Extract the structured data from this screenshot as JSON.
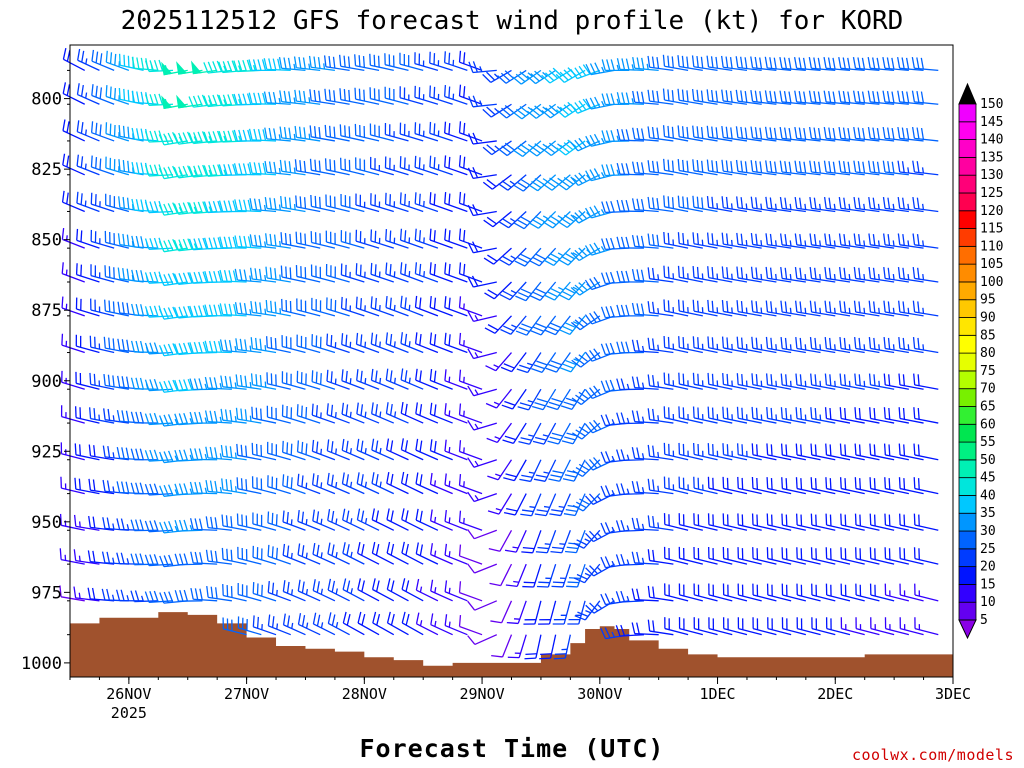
{
  "chart_data": {
    "type": "wind-barb time-height profile",
    "title": "2025112512 GFS forecast wind profile (kt) for KORD",
    "xlabel": "Forecast Time (UTC)",
    "ylabel": "",
    "credit": "coolwx.com/models",
    "y_axis": {
      "units": "hPa",
      "inverted": true,
      "ylim": [
        1005,
        781
      ],
      "tick_values": [
        800,
        825,
        850,
        875,
        900,
        925,
        950,
        975,
        1000
      ]
    },
    "x_axis": {
      "units": "hours after 2025-11-25 12Z",
      "xlim": [
        0,
        180
      ],
      "ticks": [
        {
          "hour": 12,
          "label": "26NOV",
          "sublabel": "2025"
        },
        {
          "hour": 36,
          "label": "27NOV"
        },
        {
          "hour": 60,
          "label": "28NOV"
        },
        {
          "hour": 84,
          "label": "29NOV"
        },
        {
          "hour": 108,
          "label": "30NOV"
        },
        {
          "hour": 132,
          "label": "1DEC"
        },
        {
          "hour": 156,
          "label": "2DEC"
        },
        {
          "hour": 180,
          "label": "3DEC"
        }
      ]
    },
    "barb_levels_hpa": [
      790,
      802,
      815,
      827,
      840,
      853,
      865,
      877,
      890,
      903,
      915,
      928,
      940,
      953,
      965,
      978,
      990
    ],
    "barb_times_hours": [
      3,
      6,
      9,
      12,
      15,
      18,
      21,
      24,
      27,
      30,
      33,
      36,
      39,
      42,
      45,
      48,
      51,
      54,
      57,
      60,
      63,
      66,
      69,
      72,
      75,
      78,
      81,
      84,
      87,
      90,
      93,
      96,
      99,
      102,
      105,
      108,
      111,
      114,
      117,
      120,
      123,
      126,
      129,
      132,
      135,
      138,
      141,
      144,
      147,
      150,
      153,
      156,
      159,
      162,
      165,
      168,
      171,
      174,
      177
    ],
    "wind_keyframes": [
      {
        "hour": 0,
        "dir_top": 300,
        "dir_bottom": 280,
        "spd_top": 15,
        "spd_bottom": 8
      },
      {
        "hour": 12,
        "dir_top": 290,
        "dir_bottom": 270,
        "spd_top": 35,
        "spd_bottom": 22
      },
      {
        "hour": 24,
        "dir_top": 260,
        "dir_bottom": 265,
        "spd_top": 50,
        "spd_bottom": 28
      },
      {
        "hour": 36,
        "dir_top": 265,
        "dir_bottom": 285,
        "spd_top": 45,
        "spd_bottom": 28
      },
      {
        "hour": 48,
        "dir_top": 275,
        "dir_bottom": 295,
        "spd_top": 35,
        "spd_bottom": 25
      },
      {
        "hour": 60,
        "dir_top": 280,
        "dir_bottom": 300,
        "spd_top": 30,
        "spd_bottom": 22
      },
      {
        "hour": 72,
        "dir_top": 285,
        "dir_bottom": 300,
        "spd_top": 28,
        "spd_bottom": 18
      },
      {
        "hour": 84,
        "dir_top": 290,
        "dir_bottom": 290,
        "spd_top": 22,
        "spd_bottom": 10
      },
      {
        "hour": 90,
        "dir_top": 240,
        "dir_bottom": 200,
        "spd_top": 25,
        "spd_bottom": 8
      },
      {
        "hour": 96,
        "dir_top": 235,
        "dir_bottom": 190,
        "spd_top": 35,
        "spd_bottom": 18
      },
      {
        "hour": 105,
        "dir_top": 240,
        "dir_bottom": 190,
        "spd_top": 40,
        "spd_bottom": 25
      },
      {
        "hour": 114,
        "dir_top": 270,
        "dir_bottom": 260,
        "spd_top": 35,
        "spd_bottom": 22
      },
      {
        "hour": 126,
        "dir_top": 280,
        "dir_bottom": 285,
        "spd_top": 30,
        "spd_bottom": 20
      },
      {
        "hour": 150,
        "dir_top": 275,
        "dir_bottom": 285,
        "spd_top": 30,
        "spd_bottom": 18
      },
      {
        "hour": 180,
        "dir_top": 275,
        "dir_bottom": 285,
        "spd_top": 30,
        "spd_bottom": 15
      }
    ],
    "surface_pressure_hpa": [
      {
        "hour": 0,
        "p": 986
      },
      {
        "hour": 6,
        "p": 984
      },
      {
        "hour": 12,
        "p": 984
      },
      {
        "hour": 18,
        "p": 982
      },
      {
        "hour": 24,
        "p": 983
      },
      {
        "hour": 30,
        "p": 986
      },
      {
        "hour": 36,
        "p": 991
      },
      {
        "hour": 42,
        "p": 994
      },
      {
        "hour": 48,
        "p": 995
      },
      {
        "hour": 54,
        "p": 996
      },
      {
        "hour": 60,
        "p": 998
      },
      {
        "hour": 66,
        "p": 999
      },
      {
        "hour": 72,
        "p": 1001
      },
      {
        "hour": 78,
        "p": 1000
      },
      {
        "hour": 84,
        "p": 1000
      },
      {
        "hour": 90,
        "p": 1000
      },
      {
        "hour": 96,
        "p": 997
      },
      {
        "hour": 102,
        "p": 993
      },
      {
        "hour": 105,
        "p": 988
      },
      {
        "hour": 108,
        "p": 987
      },
      {
        "hour": 111,
        "p": 988
      },
      {
        "hour": 114,
        "p": 992
      },
      {
        "hour": 120,
        "p": 995
      },
      {
        "hour": 126,
        "p": 997
      },
      {
        "hour": 132,
        "p": 998
      },
      {
        "hour": 138,
        "p": 998
      },
      {
        "hour": 144,
        "p": 998
      },
      {
        "hour": 150,
        "p": 998
      },
      {
        "hour": 156,
        "p": 998
      },
      {
        "hour": 162,
        "p": 997
      },
      {
        "hour": 168,
        "p": 997
      },
      {
        "hour": 174,
        "p": 997
      },
      {
        "hour": 180,
        "p": 998
      }
    ],
    "colorbar": {
      "units": "kt",
      "levels": [
        5,
        10,
        15,
        20,
        25,
        30,
        35,
        40,
        45,
        50,
        55,
        60,
        65,
        70,
        75,
        80,
        85,
        90,
        95,
        100,
        105,
        110,
        115,
        120,
        125,
        130,
        135,
        140,
        145,
        150
      ],
      "labels": [
        "5",
        "10",
        "15",
        "20",
        "25",
        "30",
        "35",
        "40",
        "45",
        "50",
        "55",
        "60",
        "65",
        "70",
        "75",
        "80",
        "85",
        "90",
        "95",
        "100",
        "105",
        "110",
        "115",
        "120",
        "125",
        "130",
        "135",
        "140",
        "145",
        "150"
      ],
      "colors": [
        "#8a00e6",
        "#6400f0",
        "#3200ff",
        "#0014ff",
        "#003cff",
        "#0064ff",
        "#0096ff",
        "#00c8ff",
        "#00e6dc",
        "#00f0b4",
        "#00f082",
        "#00e650",
        "#32f032",
        "#78f000",
        "#b4ff00",
        "#e6ff00",
        "#ffff00",
        "#ffe600",
        "#ffc800",
        "#ffaa00",
        "#ff8c00",
        "#ff6e00",
        "#ff3c00",
        "#ff0000",
        "#ff0050",
        "#ff0078",
        "#ff00a0",
        "#ff00c8",
        "#ff00f0",
        "#f000ff"
      ],
      "end_colors": {
        "top": "#000000",
        "bottom": "#8a00e6"
      }
    },
    "terrain_color": "#a0522d"
  }
}
